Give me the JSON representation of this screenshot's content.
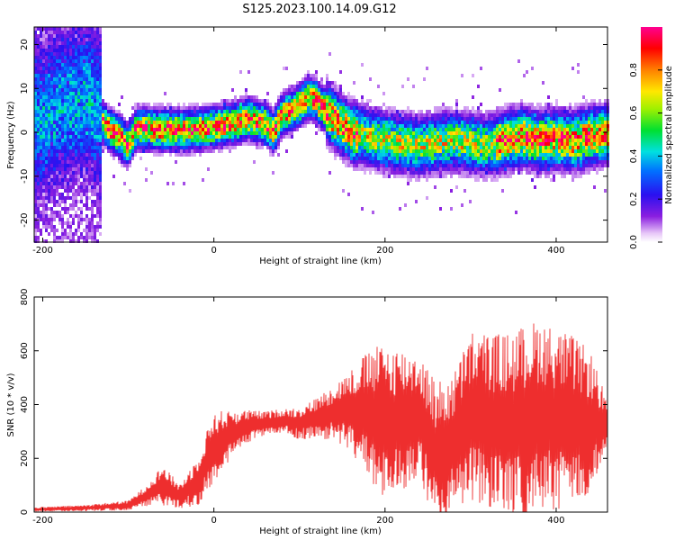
{
  "title": "S125.2023.100.14.09.G12",
  "colors": {
    "trace": "#ee2e2e",
    "axis": "#000000"
  },
  "chart_data": [
    {
      "type": "heatmap",
      "xlabel": "Height of straight line (km)",
      "ylabel": "Frequency (Hz)",
      "xlim": [
        -210,
        460
      ],
      "ylim": [
        -25,
        24
      ],
      "xticks": [
        "-200",
        "0",
        "200",
        "400"
      ],
      "yticks": [
        "-20",
        "-10",
        "0",
        "10",
        "20"
      ],
      "colorbar": {
        "label": "Normalized spectral amplitude",
        "range": [
          0,
          1
        ],
        "ticks": [
          "0.0",
          "0.2",
          "0.4",
          "0.6",
          "0.8"
        ],
        "colormap": "rainbow (purple-blue-cyan-green-yellow-red-magenta)"
      },
      "ridge": {
        "x": [
          -200,
          -180,
          -160,
          -145,
          -135,
          -125,
          -110,
          -100,
          -90,
          -60,
          -30,
          0,
          20,
          40,
          60,
          70,
          80,
          90,
          100,
          110,
          120,
          130,
          140,
          160,
          180,
          200,
          240,
          280,
          320,
          340,
          360,
          380,
          400,
          420,
          440,
          460
        ],
        "y": [
          3,
          6,
          7,
          8,
          4,
          1,
          -1,
          -3,
          1,
          0.5,
          0.5,
          1,
          2,
          3,
          2,
          0,
          4,
          5,
          6,
          8,
          7,
          5,
          3,
          0,
          -1,
          -2,
          -3,
          -2,
          -3,
          -2,
          -1,
          -2,
          -1.5,
          -2,
          -1,
          -0.5
        ],
        "peak_amplitude": 0.95
      }
    },
    {
      "type": "line",
      "xlabel": "Height of straight line (km)",
      "ylabel": "SNR (10 * v/v)",
      "xlim": [
        -210,
        460
      ],
      "ylim": [
        0,
        800
      ],
      "xticks": [
        "-200",
        "0",
        "200",
        "400"
      ],
      "yticks": [
        "0",
        "200",
        "400",
        "600",
        "800"
      ],
      "series": [
        {
          "x": [
            -210,
            -150,
            -100,
            -80,
            -60,
            -40,
            -20,
            0,
            20,
            40,
            60,
            80,
            100,
            120,
            140,
            160,
            180,
            200,
            220,
            240,
            260,
            280,
            300,
            320,
            340,
            360,
            380,
            400,
            420,
            440,
            460
          ],
          "y": [
            10,
            15,
            25,
            60,
            100,
            60,
            110,
            240,
            290,
            320,
            330,
            340,
            330,
            350,
            370,
            380,
            360,
            330,
            340,
            370,
            200,
            260,
            360,
            340,
            320,
            330,
            360,
            340,
            340,
            330,
            320
          ],
          "spread": [
            5,
            8,
            12,
            25,
            50,
            30,
            60,
            90,
            60,
            40,
            30,
            30,
            40,
            50,
            70,
            100,
            160,
            200,
            180,
            150,
            190,
            170,
            210,
            220,
            230,
            240,
            240,
            230,
            210,
            180,
            60
          ]
        }
      ]
    }
  ]
}
